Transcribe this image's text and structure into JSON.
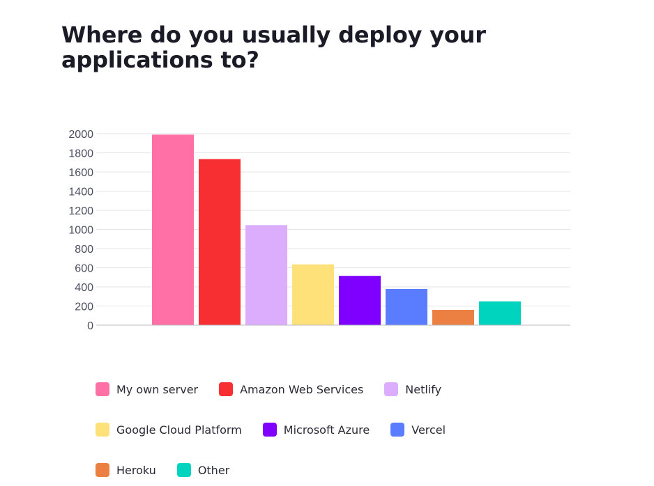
{
  "chart_data": {
    "type": "bar",
    "title": "Where do you usually deploy your applications to?",
    "xlabel": "",
    "ylabel": "",
    "ylim": [
      0,
      2000
    ],
    "yticks": [
      0,
      200,
      400,
      600,
      800,
      1000,
      1200,
      1400,
      1600,
      1800,
      2000
    ],
    "grid": true,
    "legend_position": "bottom",
    "categories": [
      "My own server",
      "Amazon Web Services",
      "Netlify",
      "Google Cloud Platform",
      "Microsoft Azure",
      "Vercel",
      "Heroku",
      "Other"
    ],
    "values": [
      1990,
      1735,
      1045,
      635,
      515,
      378,
      160,
      248
    ],
    "colors": [
      "#ff70a6",
      "#f72f32",
      "#dbadfc",
      "#ffe17a",
      "#8000ff",
      "#5a7dff",
      "#ec8042",
      "#00d4bf"
    ]
  }
}
